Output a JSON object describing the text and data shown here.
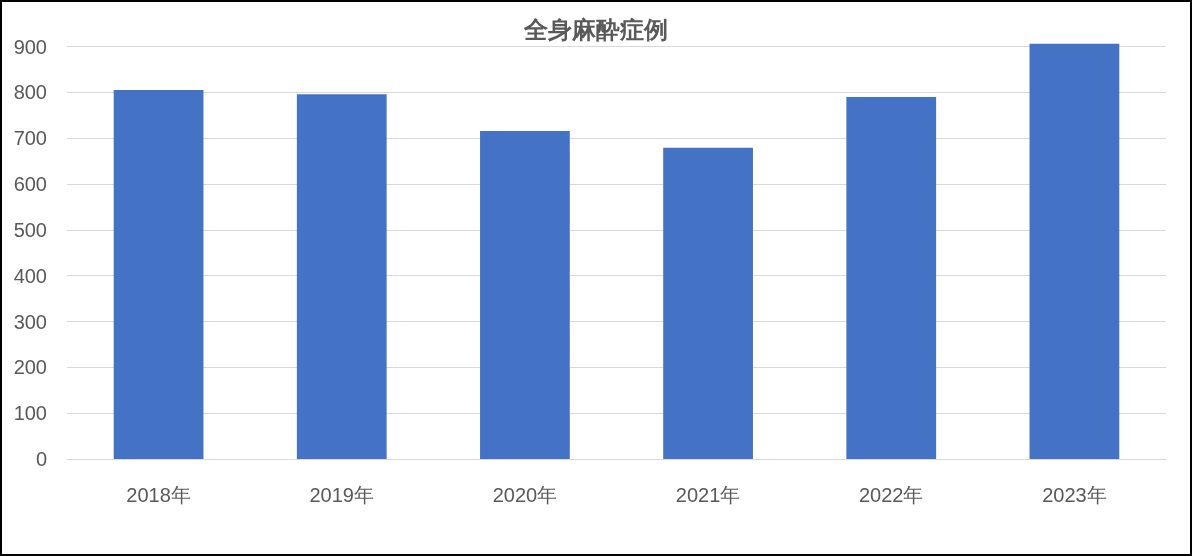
{
  "chart_data": {
    "type": "bar",
    "title": "全身麻酔症例",
    "categories": [
      "2018年",
      "2019年",
      "2020年",
      "2021年",
      "2022年",
      "2023年"
    ],
    "values": [
      805,
      796,
      716,
      679,
      790,
      906
    ],
    "color": "#4472c4",
    "ylim": [
      0,
      910
    ],
    "yticks": [
      0,
      100,
      200,
      300,
      400,
      500,
      600,
      700,
      800,
      900
    ],
    "grid": "y"
  }
}
